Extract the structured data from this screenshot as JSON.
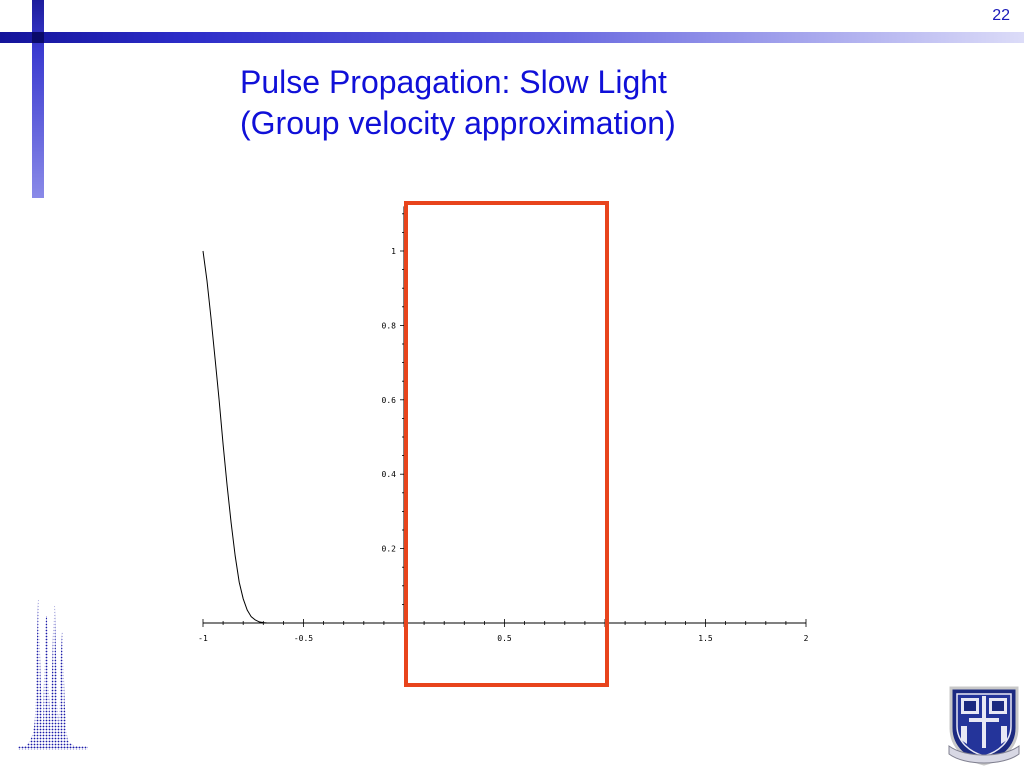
{
  "slide": {
    "number": "22",
    "title_line1": "Pulse Propagation:  Slow Light",
    "title_line2": "(Group velocity approximation)"
  },
  "colors": {
    "title": "#1010d8",
    "accent_bar": "#2c2cc8",
    "highlight_box": "#e8441c",
    "curve": "#000000"
  },
  "chart_data": {
    "type": "line",
    "title": "",
    "xlabel": "",
    "ylabel": "",
    "xlim": [
      -1,
      2
    ],
    "ylim": [
      0,
      1.1
    ],
    "x_ticks": [
      -1,
      -0.5,
      0.5,
      1.5,
      2
    ],
    "x_tick_labels": [
      "-1",
      "-0.5",
      "0.5",
      "1.5",
      "2"
    ],
    "y_ticks": [
      0.2,
      0.4,
      0.6,
      0.8,
      1
    ],
    "y_tick_labels": [
      "0.2",
      "0.4",
      "0.6",
      "0.8",
      "1"
    ],
    "grid": false,
    "series": [
      {
        "x": [
          -1.0,
          -0.98,
          -0.96,
          -0.94,
          -0.92,
          -0.9,
          -0.88,
          -0.86,
          -0.84,
          -0.82,
          -0.8,
          -0.78,
          -0.76,
          -0.74,
          -0.72,
          -0.7,
          -0.68,
          -0.66,
          -0.64,
          -0.63
        ],
        "y": [
          1.0,
          0.92,
          0.82,
          0.71,
          0.6,
          0.48,
          0.37,
          0.27,
          0.18,
          0.11,
          0.065,
          0.035,
          0.017,
          0.008,
          0.003,
          0.001,
          0.0,
          0.0,
          0.0,
          0.0
        ]
      }
    ],
    "highlight_region": {
      "x_start": 0.0,
      "x_end": 1.0
    }
  }
}
